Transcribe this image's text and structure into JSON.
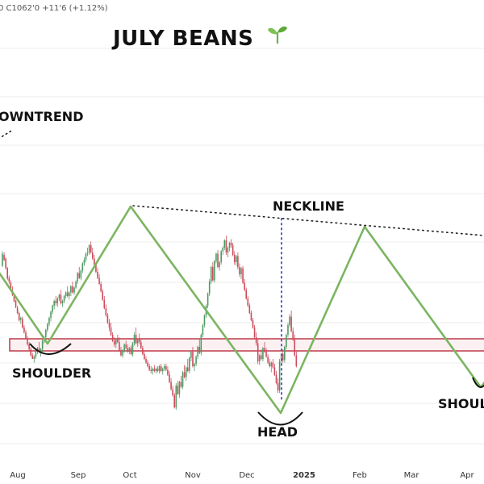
{
  "header": {
    "ohlc_text": "0 C1062'0 +11'6 (+1.12%)",
    "title": "JULY BEANS",
    "title_icon": "seedling-icon"
  },
  "annotations": {
    "downtrend": "OWNTREND",
    "neckline": "NECKLINE",
    "left_shoulder": "SHOULDER",
    "head": "HEAD",
    "right_shoulder": "SHOUL"
  },
  "colors": {
    "pattern_line": "#7cb561",
    "up_candle": "#4f9a62",
    "down_candle": "#cc4b5c",
    "support_zone": "#c0394a",
    "neckline_dots": "#222222",
    "head_marker": "#4a5fd0"
  },
  "chart_data": {
    "type": "candlestick",
    "x_tick_labels": [
      "Aug",
      "Sep",
      "Oct",
      "Nov",
      "Dec",
      "2025",
      "Feb",
      "Mar",
      "Apr"
    ],
    "pattern": "head-and-shoulders",
    "key_points": [
      {
        "name": "left shoulder low",
        "x": "mid Aug"
      },
      {
        "name": "Oct high",
        "x": "early Oct"
      },
      {
        "name": "head low",
        "x": "late Dec"
      },
      {
        "name": "Feb high",
        "x": "early Feb"
      },
      {
        "name": "right shoulder low",
        "x": "mid Apr"
      }
    ],
    "candles": [
      [
        3.5,
        9.5,
        3.0,
        8.5
      ],
      [
        8.0,
        9.0,
        5.5,
        5.8
      ],
      [
        6.5,
        7.0,
        2.0,
        2.5
      ],
      [
        2.5,
        3.0,
        -2.5,
        -1.8
      ],
      [
        -1.5,
        -0.5,
        -4.0,
        -3.0
      ],
      [
        -3.5,
        -2.5,
        -6.5,
        -6.0
      ],
      [
        -6.5,
        -5.0,
        -9.0,
        -8.6
      ],
      [
        -9.0,
        -8.0,
        -11.5,
        -11.2
      ],
      [
        -11.0,
        -10.5,
        -14.0,
        -13.5
      ],
      [
        -13.8,
        -13.0,
        -16.5,
        -16.0
      ],
      [
        -16.0,
        -15.5,
        -19.5,
        -19.0
      ],
      [
        -18.8,
        -17.5,
        -20.5,
        -18.0
      ],
      [
        -18.5,
        -17.5,
        -22.5,
        -22.0
      ],
      [
        -22.0,
        -21.0,
        -24.5,
        -24.0
      ],
      [
        -24.0,
        -23.0,
        -27.0,
        -26.5
      ],
      [
        -26.5,
        -25.5,
        -29.5,
        -29.0
      ],
      [
        -29.0,
        -28.0,
        -31.5,
        -31.0
      ],
      [
        -31.0,
        -30.0,
        -34.0,
        -33.5
      ],
      [
        -33.5,
        -32.5,
        -35.0,
        -35.0
      ],
      [
        -35.0,
        -33.5,
        -36.5,
        -34.0
      ],
      [
        -34.0,
        -31.0,
        -35.0,
        -32.0
      ],
      [
        -32.0,
        -30.0,
        -33.0,
        -30.5
      ],
      [
        -30.5,
        -28.0,
        -32.5,
        -32.0
      ],
      [
        -32.0,
        -30.5,
        -34.0,
        -31.0
      ],
      [
        -31.0,
        -27.0,
        -32.0,
        -27.5
      ],
      [
        -27.5,
        -25.5,
        -28.5,
        -26.0
      ],
      [
        -26.0,
        -22.5,
        -27.0,
        -23.0
      ],
      [
        -23.0,
        -20.0,
        -24.0,
        -20.5
      ],
      [
        -20.5,
        -17.5,
        -21.5,
        -18.0
      ],
      [
        -18.0,
        -15.0,
        -19.5,
        -15.5
      ],
      [
        -15.5,
        -12.5,
        -16.5,
        -13.0
      ],
      [
        -13.0,
        -10.5,
        -14.5,
        -11.0
      ],
      [
        -11.0,
        -9.0,
        -13.0,
        -12.0
      ],
      [
        -12.0,
        -9.5,
        -13.5,
        -10.0
      ],
      [
        -10.0,
        -8.0,
        -11.0,
        -8.5
      ],
      [
        -8.5,
        -6.5,
        -12.5,
        -12.0
      ],
      [
        -12.0,
        -10.5,
        -13.5,
        -11.0
      ],
      [
        -11.0,
        -8.5,
        -12.0,
        -9.0
      ],
      [
        -9.0,
        -7.0,
        -10.0,
        -7.5
      ],
      [
        -7.5,
        -5.0,
        -9.5,
        -9.0
      ],
      [
        -9.0,
        -7.0,
        -10.5,
        -7.5
      ],
      [
        -7.5,
        -4.5,
        -9.0,
        -5.0
      ],
      [
        -5.0,
        -3.0,
        -8.0,
        -7.5
      ],
      [
        -7.5,
        -5.0,
        -8.5,
        -5.5
      ],
      [
        -5.5,
        -2.5,
        -6.0,
        -3.0
      ],
      [
        -3.0,
        1.0,
        -4.0,
        0.5
      ],
      [
        0.5,
        3.0,
        -2.0,
        -1.5
      ],
      [
        -1.5,
        2.0,
        -2.5,
        1.5
      ],
      [
        1.5,
        5.0,
        0.5,
        4.5
      ],
      [
        4.5,
        7.0,
        3.5,
        6.0
      ],
      [
        6.0,
        9.0,
        5.0,
        8.5
      ],
      [
        8.5,
        11.0,
        7.5,
        9.0
      ],
      [
        9.0,
        12.5,
        8.0,
        12.0
      ],
      [
        12.0,
        13.5,
        8.5,
        9.0
      ],
      [
        9.0,
        11.0,
        6.0,
        6.5
      ],
      [
        6.5,
        8.0,
        3.5,
        4.0
      ],
      [
        4.0,
        5.0,
        0.5,
        1.0
      ],
      [
        1.0,
        2.5,
        -2.0,
        -1.5
      ],
      [
        -1.5,
        0.0,
        -4.5,
        -4.0
      ],
      [
        -4.0,
        -3.0,
        -7.5,
        -7.0
      ],
      [
        -7.0,
        -6.0,
        -11.0,
        -10.5
      ],
      [
        -10.5,
        -9.0,
        -14.5,
        -14.0
      ],
      [
        -14.0,
        -12.5,
        -17.5,
        -17.0
      ],
      [
        -17.0,
        -16.0,
        -20.5,
        -20.0
      ],
      [
        -20.0,
        -18.5,
        -23.5,
        -22.0
      ],
      [
        -22.0,
        -20.0,
        -25.5,
        -25.0
      ],
      [
        -25.0,
        -24.0,
        -28.0,
        -27.5
      ],
      [
        -27.5,
        -26.0,
        -30.0,
        -29.0
      ],
      [
        -29.0,
        -26.5,
        -30.5,
        -27.0
      ],
      [
        -27.0,
        -25.0,
        -28.5,
        -28.0
      ],
      [
        -28.0,
        -26.0,
        -32.0,
        -31.5
      ],
      [
        -31.5,
        -30.0,
        -34.0,
        -33.5
      ],
      [
        -33.5,
        -31.0,
        -34.5,
        -31.5
      ],
      [
        -31.5,
        -28.5,
        -32.5,
        -29.0
      ],
      [
        -29.0,
        -27.5,
        -31.0,
        -30.5
      ],
      [
        -30.5,
        -29.0,
        -32.5,
        -32.0
      ],
      [
        -32.0,
        -30.0,
        -33.0,
        -30.5
      ],
      [
        -30.5,
        -29.5,
        -33.5,
        -33.0
      ],
      [
        -33.0,
        -28.0,
        -34.0,
        -28.5
      ],
      [
        -28.5,
        -24.0,
        -29.5,
        -25.0
      ],
      [
        -25.0,
        -22.0,
        -29.0,
        -28.5
      ],
      [
        -28.5,
        -26.5,
        -30.0,
        -27.0
      ],
      [
        -27.0,
        -24.5,
        -29.0,
        -28.0
      ],
      [
        -28.0,
        -27.0,
        -31.0,
        -30.5
      ],
      [
        -30.5,
        -29.5,
        -33.5,
        -33.0
      ],
      [
        -33.0,
        -32.0,
        -35.5,
        -35.0
      ],
      [
        -35.0,
        -34.0,
        -37.0,
        -36.5
      ],
      [
        -36.5,
        -35.5,
        -38.5,
        -38.0
      ],
      [
        -38.0,
        -37.0,
        -40.0,
        -39.5
      ],
      [
        -39.5,
        -38.0,
        -41.0,
        -40.0
      ],
      [
        -40.0,
        -38.5,
        -41.5,
        -39.0
      ],
      [
        -39.0,
        -37.5,
        -40.5,
        -40.0
      ],
      [
        -40.0,
        -38.5,
        -41.0,
        -39.0
      ],
      [
        -39.0,
        -38.0,
        -40.5,
        -40.0
      ],
      [
        -40.0,
        -37.5,
        -41.0,
        -38.0
      ],
      [
        -38.0,
        -37.0,
        -40.5,
        -40.0
      ],
      [
        -40.0,
        -38.5,
        -41.5,
        -39.0
      ],
      [
        -39.0,
        -37.0,
        -40.0,
        -38.0
      ],
      [
        -38.0,
        -37.0,
        -40.0,
        -39.5
      ],
      [
        -39.5,
        -38.0,
        -42.0,
        -41.5
      ],
      [
        -41.5,
        -40.0,
        -45.0,
        -44.5
      ],
      [
        -44.5,
        -43.0,
        -48.0,
        -47.5
      ],
      [
        -47.5,
        -46.0,
        -50.5,
        -50.0
      ],
      [
        -50.0,
        -49.0,
        -55.5,
        -55.0
      ],
      [
        -55.0,
        -45.0,
        -56.0,
        -46.0
      ],
      [
        -46.0,
        -44.0,
        -50.0,
        -49.5
      ],
      [
        -49.5,
        -44.0,
        -51.0,
        -44.5
      ],
      [
        -44.5,
        -42.0,
        -47.0,
        -46.5
      ],
      [
        -46.5,
        -40.0,
        -47.5,
        -40.5
      ],
      [
        -40.5,
        -37.5,
        -43.0,
        -42.5
      ],
      [
        -42.5,
        -38.0,
        -44.0,
        -38.5
      ],
      [
        -38.5,
        -35.0,
        -40.5,
        -40.0
      ],
      [
        -40.0,
        -34.0,
        -41.0,
        -34.5
      ],
      [
        -34.5,
        -31.5,
        -36.0,
        -32.0
      ],
      [
        -32.0,
        -30.0,
        -38.5,
        -38.0
      ],
      [
        -38.0,
        -36.5,
        -40.0,
        -37.0
      ],
      [
        -37.0,
        -33.5,
        -38.0,
        -34.0
      ],
      [
        -34.0,
        -29.5,
        -35.0,
        -30.0
      ],
      [
        -30.0,
        -27.0,
        -33.0,
        -32.5
      ],
      [
        -32.5,
        -24.5,
        -33.5,
        -25.0
      ],
      [
        -25.0,
        -20.5,
        -26.0,
        -21.0
      ],
      [
        -21.0,
        -16.5,
        -22.0,
        -17.0
      ],
      [
        -17.0,
        -12.5,
        -18.0,
        -13.0
      ],
      [
        -13.0,
        -7.5,
        -14.0,
        -8.0
      ],
      [
        -8.0,
        -2.0,
        -9.0,
        -3.0
      ],
      [
        -3.0,
        3.5,
        -4.0,
        3.0
      ],
      [
        3.0,
        5.0,
        -3.0,
        -2.5
      ],
      [
        -2.5,
        6.0,
        -3.5,
        5.5
      ],
      [
        5.5,
        9.0,
        4.5,
        8.5
      ],
      [
        8.5,
        10.0,
        2.5,
        3.0
      ],
      [
        3.0,
        5.5,
        1.5,
        5.0
      ],
      [
        5.0,
        10.0,
        4.0,
        9.5
      ],
      [
        9.5,
        11.5,
        8.0,
        11.0
      ],
      [
        11.0,
        14.5,
        10.0,
        14.0
      ],
      [
        14.0,
        16.0,
        8.0,
        9.0
      ],
      [
        9.0,
        11.5,
        7.0,
        11.0
      ],
      [
        11.0,
        13.5,
        9.5,
        13.0
      ],
      [
        13.0,
        14.5,
        11.0,
        12.0
      ],
      [
        12.0,
        13.0,
        7.5,
        8.0
      ],
      [
        8.0,
        9.5,
        4.0,
        5.0
      ],
      [
        5.0,
        8.0,
        3.5,
        7.5
      ],
      [
        7.5,
        9.0,
        2.0,
        3.0
      ],
      [
        3.0,
        4.5,
        -1.0,
        0.0
      ],
      [
        0.0,
        3.0,
        -2.0,
        2.5
      ],
      [
        2.5,
        3.5,
        -4.0,
        -3.5
      ],
      [
        -3.5,
        -2.0,
        -7.0,
        -6.5
      ],
      [
        -6.5,
        -5.5,
        -10.5,
        -10.0
      ],
      [
        -10.0,
        -9.0,
        -13.5,
        -13.0
      ],
      [
        -13.0,
        -12.0,
        -16.5,
        -16.0
      ],
      [
        -16.0,
        -15.0,
        -19.5,
        -19.0
      ],
      [
        -19.0,
        -18.0,
        -22.5,
        -22.0
      ],
      [
        -22.0,
        -21.0,
        -26.5,
        -26.0
      ],
      [
        -26.0,
        -24.0,
        -29.5,
        -28.5
      ],
      [
        -28.5,
        -27.0,
        -37.0,
        -36.0
      ],
      [
        -36.0,
        -33.0,
        -37.5,
        -33.5
      ],
      [
        -33.5,
        -31.0,
        -35.5,
        -35.0
      ],
      [
        -35.0,
        -30.0,
        -36.0,
        -30.5
      ],
      [
        -30.5,
        -28.0,
        -32.5,
        -32.0
      ],
      [
        -32.0,
        -30.5,
        -34.5,
        -34.0
      ],
      [
        -34.0,
        -33.0,
        -37.0,
        -36.5
      ],
      [
        -36.5,
        -35.0,
        -38.5,
        -38.0
      ],
      [
        -38.0,
        -36.0,
        -40.5,
        -36.5
      ],
      [
        -36.5,
        -35.0,
        -39.0,
        -38.5
      ],
      [
        -38.5,
        -37.0,
        -42.0,
        -41.5
      ],
      [
        -41.5,
        -40.0,
        -45.5,
        -45.0
      ],
      [
        -45.0,
        -43.0,
        -49.0,
        -48.0
      ],
      [
        -48.0,
        -35.0,
        -49.0,
        -36.0
      ],
      [
        -36.0,
        -32.5,
        -38.0,
        -33.0
      ],
      [
        -33.0,
        -31.0,
        -36.5,
        -35.5
      ],
      [
        -35.5,
        -29.5,
        -36.5,
        -30.0
      ],
      [
        -30.0,
        -24.5,
        -31.0,
        -25.0
      ],
      [
        -25.0,
        -20.0,
        -26.0,
        -21.0
      ],
      [
        -21.0,
        -16.5,
        -22.0,
        -17.5
      ],
      [
        -17.5,
        -15.0,
        -24.0,
        -23.5
      ],
      [
        -23.5,
        -22.0,
        -27.5,
        -27.0
      ],
      [
        -27.0,
        -25.0,
        -34.0,
        -33.5
      ],
      [
        -33.5,
        -32.0,
        -38.5,
        -38.0
      ]
    ]
  }
}
